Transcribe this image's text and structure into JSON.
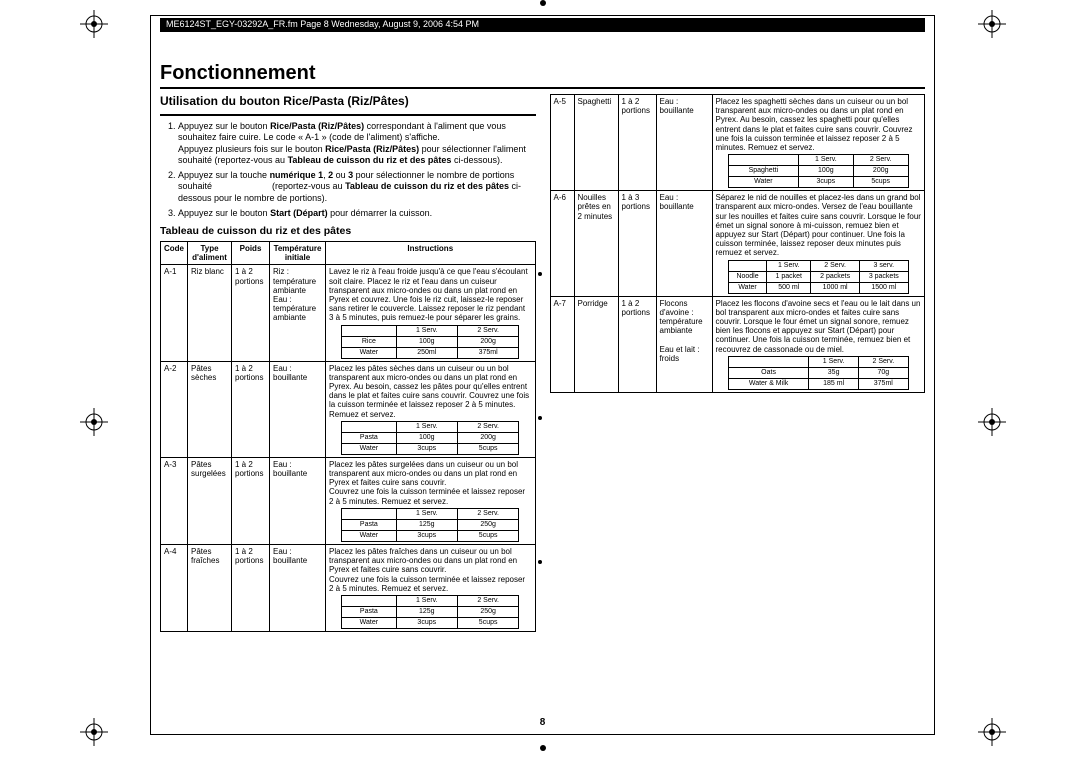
{
  "header": "ME6124ST_EGY-03292A_FR.fm  Page 8  Wednesday, August 9, 2006  4:54 PM",
  "title": "Fonctionnement",
  "section_a_title": "Utilisation du bouton Rice/Pasta (Riz/Pâtes)",
  "steps": [
    "Appuyez sur le bouton <b>Rice/Pasta (Riz/Pâtes)</b> correspondant à l'aliment que vous souhaitez faire cuire. Le code « A-1 » (code de l'aliment) s'affiche.<br>Appuyez plusieurs fois sur le bouton <b>Rice/Pasta (Riz/Pâtes)</b> pour sélectionner l'aliment souhaité (reportez-vous au <b>Tableau de cuisson du riz et des pâtes</b> ci-dessous).",
    "Appuyez sur la touche <b>numérique 1</b>, <b>2</b> ou <b>3</b> pour sélectionner le nombre de portions souhaité &nbsp;&nbsp;&nbsp;&nbsp;&nbsp;&nbsp;&nbsp;&nbsp;&nbsp;&nbsp;&nbsp;&nbsp;&nbsp;&nbsp;&nbsp;&nbsp;&nbsp;&nbsp;&nbsp;&nbsp;&nbsp;&nbsp;&nbsp;(reportez-vous au <b>Tableau de cuisson du riz et des pâtes</b> ci-dessous pour le nombre de portions).",
    "Appuyez sur le bouton <b>Start (Départ)</b> pour démarrer la cuisson."
  ],
  "table_title": "Tableau de cuisson du riz et des pâtes",
  "table_headers": [
    "Code",
    "Type d'aliment",
    "Poids",
    "Température initiale",
    "Instructions"
  ],
  "left_rows": [
    {
      "code": "A-1",
      "type": "Riz blanc",
      "poids": "1 à 2 portions",
      "temp": "Riz : température ambiante Eau : température ambiante",
      "instr": "Lavez le riz à l'eau froide jusqu'à ce que l'eau s'écoulant soit claire. Placez le riz et l'eau dans un cuiseur transparent aux micro-ondes ou dans un plat rond en Pyrex et couvrez. Une fois le riz cuit, laissez-le reposer sans retirer le couvercle. Laissez reposer le riz pendant 3 à 5 minutes, puis remuez-le pour séparer les grains.",
      "mini": [
        [
          "",
          "1 Serv.",
          "2 Serv."
        ],
        [
          "Rice",
          "100g",
          "200g"
        ],
        [
          "Water",
          "250ml",
          "375ml"
        ]
      ]
    },
    {
      "code": "A-2",
      "type": "Pâtes sèches",
      "poids": "1 à 2 portions",
      "temp": "Eau : bouillante",
      "instr": "Placez les pâtes sèches dans un cuiseur ou un bol transparent aux micro-ondes ou dans un plat rond en Pyrex. Au besoin, cassez les pâtes pour qu'elles entrent dans le plat et faites cuire sans couvrir. Couvrez une fois la cuisson terminée et laissez reposer 2 à 5 minutes. Remuez et servez.",
      "mini": [
        [
          "",
          "1 Serv.",
          "2 Serv."
        ],
        [
          "Pasta",
          "100g",
          "200g"
        ],
        [
          "Water",
          "3cups",
          "5cups"
        ]
      ]
    },
    {
      "code": "A-3",
      "type": "Pâtes surgelées",
      "poids": "1 à 2 portions",
      "temp": "Eau : bouillante",
      "instr": "Placez les pâtes surgelées dans un cuiseur ou un bol transparent aux micro-ondes ou dans un plat rond en Pyrex et faites cuire sans couvrir.<br>Couvrez une fois la cuisson terminée et laissez reposer 2 à 5 minutes. Remuez et servez.",
      "mini": [
        [
          "",
          "1 Serv.",
          "2 Serv."
        ],
        [
          "Pasta",
          "125g",
          "250g"
        ],
        [
          "Water",
          "3cups",
          "5cups"
        ]
      ]
    },
    {
      "code": "A-4",
      "type": "Pâtes fraîches",
      "poids": "1 à 2 portions",
      "temp": "Eau : bouillante",
      "instr": "Placez les pâtes fraîches dans un cuiseur ou un bol transparent aux micro-ondes ou dans un plat rond en Pyrex et faites cuire sans couvrir.<br>Couvrez une fois la cuisson terminée et laissez reposer 2 à 5 minutes. Remuez et servez.",
      "mini": [
        [
          "",
          "1 Serv.",
          "2 Serv."
        ],
        [
          "Pasta",
          "125g",
          "250g"
        ],
        [
          "Water",
          "3cups",
          "5cups"
        ]
      ]
    }
  ],
  "right_rows": [
    {
      "code": "A-5",
      "type": "Spaghetti",
      "poids": "1 à 2 portions",
      "temp": "Eau : bouillante",
      "instr": "Placez les spaghetti sèches dans un cuiseur ou un bol transparent aux micro-ondes ou dans un plat rond en Pyrex. Au besoin, cassez les spaghetti pour qu'elles entrent dans le plat et faites cuire sans couvrir. Couvrez une fois la cuisson terminée et laissez reposer 2 à 5 minutes. Remuez et servez.",
      "mini": [
        [
          "",
          "1 Serv.",
          "2 Serv."
        ],
        [
          "Spaghetti",
          "100g",
          "200g"
        ],
        [
          "Water",
          "3cups",
          "5cups"
        ]
      ]
    },
    {
      "code": "A-6",
      "type": "Nouilles prêtes en 2 minutes",
      "poids": "1 à 3 portions",
      "temp": "Eau : bouillante",
      "instr": "Séparez le nid de nouilles et placez-les dans un grand bol transparent aux micro-ondes. Versez de l'eau bouillante sur les nouilles et faites cuire sans couvrir. Lorsque le four émet un signal sonore à mi-cuisson, remuez bien et appuyez sur Start (Départ) pour continuer. Une fois la cuisson terminée, laissez reposer deux minutes puis remuez et servez.",
      "mini": [
        [
          "",
          "1 Serv.",
          "2 Serv.",
          "3 serv."
        ],
        [
          "Noodle",
          "1 packet",
          "2 packets",
          "3 packets"
        ],
        [
          "Water",
          "500 ml",
          "1000 ml",
          "1500 ml"
        ]
      ]
    },
    {
      "code": "A-7",
      "type": "Porridge",
      "poids": "1 à 2 portions",
      "temp": "Flocons d'avoine : température ambiante<br><br>Eau et lait : froids",
      "instr": "Placez les flocons d'avoine secs et l'eau ou le lait dans un bol transparent aux micro-ondes et faites cuire sans couvrir. Lorsque le four émet un signal sonore, remuez bien les flocons et appuyez sur Start (Départ) pour continuer. Une fois la cuisson terminée, remuez bien et recouvrez de cassonade ou de miel.",
      "mini": [
        [
          "",
          "1 Serv.",
          "2 Serv."
        ],
        [
          "Oats",
          "35g",
          "70g"
        ],
        [
          "Water & Milk",
          "185 ml",
          "375ml"
        ]
      ]
    }
  ],
  "page_num": "8"
}
